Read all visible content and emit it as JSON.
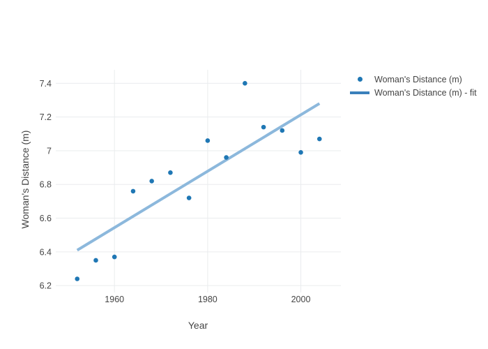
{
  "chart_data": {
    "type": "scatter",
    "title": "",
    "xlabel": "Year",
    "ylabel": "Woman's Distance (m)",
    "xlim": [
      1947.4,
      2008.6
    ],
    "ylim": [
      6.18,
      7.48
    ],
    "x_ticks": [
      1960,
      1980,
      2000
    ],
    "x_tick_labels": [
      "1960",
      "1980",
      "2000"
    ],
    "y_ticks": [
      6.2,
      6.4,
      6.6,
      6.8,
      7.0,
      7.2,
      7.4
    ],
    "y_tick_labels": [
      "6.2",
      "6.4",
      "6.6",
      "6.8",
      "7",
      "7.2",
      "7.4"
    ],
    "grid": true,
    "legend_position": "top-right-outside",
    "series": [
      {
        "name": "Woman's Distance (m)",
        "type": "scatter",
        "color": "#1f77b4",
        "x": [
          1952,
          1956,
          1960,
          1964,
          1968,
          1972,
          1976,
          1980,
          1984,
          1988,
          1992,
          1996,
          2000,
          2004
        ],
        "y": [
          6.24,
          6.35,
          6.37,
          6.76,
          6.82,
          6.87,
          6.72,
          7.06,
          6.96,
          7.4,
          7.14,
          7.12,
          6.99,
          7.07
        ]
      },
      {
        "name": "Woman's Distance (m) - fit",
        "type": "line",
        "color": "#8cb8dc",
        "legend_color": "#3a80bb",
        "x": [
          1952,
          2004
        ],
        "y": [
          6.41,
          7.28
        ]
      }
    ],
    "colors": {
      "grid": "#eaecee",
      "tick_text": "#444444",
      "axis_text": "#444444",
      "background": "#ffffff"
    }
  }
}
